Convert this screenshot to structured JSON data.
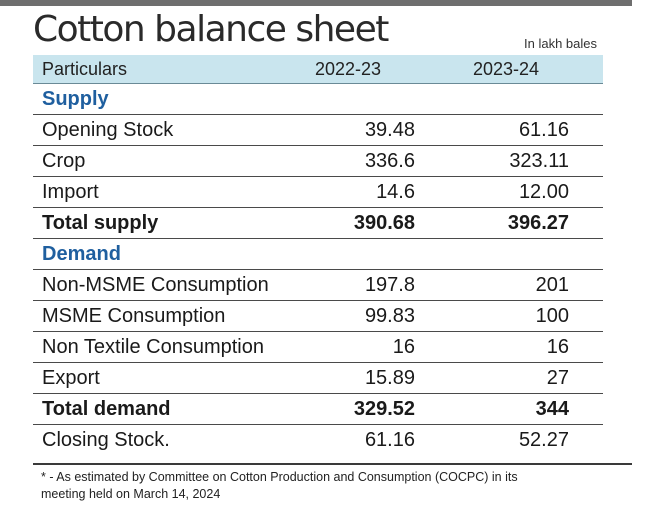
{
  "title": "Cotton balance sheet",
  "unit_note": "In lakh bales",
  "columns": [
    "Particulars",
    "2022-23",
    "2023-24"
  ],
  "supply": {
    "heading": "Supply",
    "rows": [
      {
        "label": "Opening Stock",
        "v1": "39.48",
        "v2": "61.16"
      },
      {
        "label": "Crop",
        "v1": "336.6",
        "v2": "323.11"
      },
      {
        "label": "Import",
        "v1": "14.6",
        "v2": "12.00"
      }
    ],
    "total": {
      "label": "Total supply",
      "v1": "390.68",
      "v2": "396.27"
    }
  },
  "demand": {
    "heading": "Demand",
    "rows": [
      {
        "label": "Non-MSME Consumption",
        "v1": "197.8",
        "v2": "201"
      },
      {
        "label": "MSME Consumption",
        "v1": "99.83",
        "v2": "100"
      },
      {
        "label": "Non Textile Consumption",
        "v1": "16",
        "v2": "16"
      },
      {
        "label": "Export",
        "v1": "15.89",
        "v2": "27"
      }
    ],
    "total": {
      "label": "Total demand",
      "v1": "329.52",
      "v2": "344"
    }
  },
  "closing": {
    "label": "Closing Stock.",
    "v1": "61.16",
    "v2": "52.27"
  },
  "footnote": "* - As estimated by Committee on Cotton Production and Consumption (COCPC) in its meeting held on March 14, 2024",
  "colors": {
    "header_bg": "#c9e5ee",
    "section_text": "#1f5f9f",
    "top_bar": "#6e6e6e"
  }
}
